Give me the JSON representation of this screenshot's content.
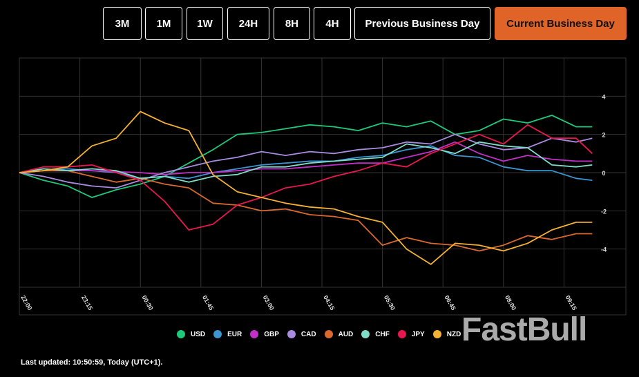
{
  "range_buttons": [
    {
      "label": "3M",
      "active": false
    },
    {
      "label": "1M",
      "active": false
    },
    {
      "label": "1W",
      "active": false
    },
    {
      "label": "24H",
      "active": false
    },
    {
      "label": "8H",
      "active": false
    },
    {
      "label": "4H",
      "active": false
    },
    {
      "label": "Previous Business Day",
      "active": false
    },
    {
      "label": "Current Business Day",
      "active": true
    }
  ],
  "accent_color": "#e06327",
  "watermark": "FastBull",
  "last_updated": "Last updated: 10:50:59, Today (UTC+1).",
  "chart_data": {
    "type": "line",
    "x_ticks": [
      "22:00",
      "23:15",
      "00:30",
      "01:45",
      "03:00",
      "04:15",
      "05:30",
      "06:45",
      "08:00",
      "09:15"
    ],
    "y_ticks": [
      4,
      2,
      0,
      -2,
      -4
    ],
    "ylim": [
      -6,
      6
    ],
    "xlim": [
      "22:00",
      "10:30"
    ],
    "grid": true,
    "legend_position": "bottom",
    "x": [
      "22:00",
      "22:30",
      "23:00",
      "23:30",
      "00:00",
      "00:30",
      "01:00",
      "01:30",
      "02:00",
      "02:30",
      "03:00",
      "03:30",
      "04:00",
      "04:30",
      "05:00",
      "05:30",
      "06:00",
      "06:30",
      "07:00",
      "07:30",
      "08:00",
      "08:30",
      "09:00",
      "09:30",
      "09:50"
    ],
    "series": [
      {
        "name": "USD",
        "color": "#1ec97a",
        "values": [
          0,
          -0.4,
          -0.7,
          -1.3,
          -0.9,
          -0.6,
          -0.2,
          0.5,
          1.2,
          2.0,
          2.1,
          2.3,
          2.5,
          2.4,
          2.2,
          2.6,
          2.4,
          2.7,
          2.0,
          2.2,
          2.8,
          2.6,
          3.0,
          2.4,
          2.4
        ]
      },
      {
        "name": "EUR",
        "color": "#3a95d0",
        "values": [
          0,
          0.1,
          0.2,
          0.1,
          0,
          -0.3,
          -0.2,
          -0.3,
          0,
          0.2,
          0.4,
          0.5,
          0.6,
          0.6,
          0.8,
          0.9,
          1.2,
          1.4,
          0.9,
          0.8,
          0.3,
          0.1,
          0.1,
          -0.3,
          -0.4
        ]
      },
      {
        "name": "GBP",
        "color": "#c22fc9",
        "values": [
          0,
          0.1,
          0.1,
          0.1,
          0.05,
          0,
          -0.1,
          0,
          0,
          0.1,
          0.2,
          0.2,
          0.3,
          0.4,
          0.5,
          0.5,
          0.8,
          1.1,
          1.6,
          1.0,
          0.6,
          0.9,
          0.7,
          0.6,
          0.6
        ]
      },
      {
        "name": "CAD",
        "color": "#a98be0",
        "values": [
          0,
          -0.2,
          -0.5,
          -0.7,
          -0.8,
          -0.4,
          0,
          0.3,
          0.6,
          0.8,
          1.1,
          0.9,
          1.1,
          1.0,
          1.2,
          1.3,
          1.6,
          1.5,
          2.0,
          1.5,
          1.2,
          1.3,
          1.8,
          1.6,
          1.8
        ]
      },
      {
        "name": "AUD",
        "color": "#d9692e",
        "values": [
          0,
          0.1,
          0.1,
          -0.2,
          -0.5,
          -0.3,
          -0.6,
          -0.8,
          -1.6,
          -1.7,
          -2.0,
          -1.9,
          -2.2,
          -2.3,
          -2.5,
          -3.8,
          -3.4,
          -3.7,
          -3.8,
          -4.1,
          -3.8,
          -3.3,
          -3.5,
          -3.2,
          -3.2
        ]
      },
      {
        "name": "CHF",
        "color": "#7fdcc9",
        "values": [
          0,
          0.2,
          0.1,
          0.2,
          0.1,
          -0.3,
          -0.2,
          -0.5,
          -0.2,
          -0.1,
          0.3,
          0.3,
          0.5,
          0.6,
          0.7,
          0.8,
          1.5,
          1.3,
          1.0,
          1.6,
          1.4,
          1.3,
          0.4,
          0.3,
          0.4
        ]
      },
      {
        "name": "JPY",
        "color": "#e8174f",
        "values": [
          0,
          0.3,
          0.3,
          0.4,
          0,
          -0.4,
          -1.5,
          -3.0,
          -2.7,
          -1.7,
          -1.3,
          -0.8,
          -0.6,
          -0.2,
          0.1,
          0.5,
          0.3,
          1.0,
          1.5,
          2.0,
          1.5,
          2.5,
          1.8,
          1.8,
          1.0
        ]
      },
      {
        "name": "NZD",
        "color": "#f5b133",
        "values": [
          0,
          0.1,
          0.3,
          1.4,
          1.8,
          3.2,
          2.6,
          2.2,
          -0.1,
          -1.0,
          -1.3,
          -1.6,
          -1.8,
          -1.9,
          -2.3,
          -2.6,
          -4.0,
          -4.8,
          -3.7,
          -3.8,
          -4.1,
          -3.7,
          -3.0,
          -2.6,
          -2.6
        ]
      }
    ]
  }
}
